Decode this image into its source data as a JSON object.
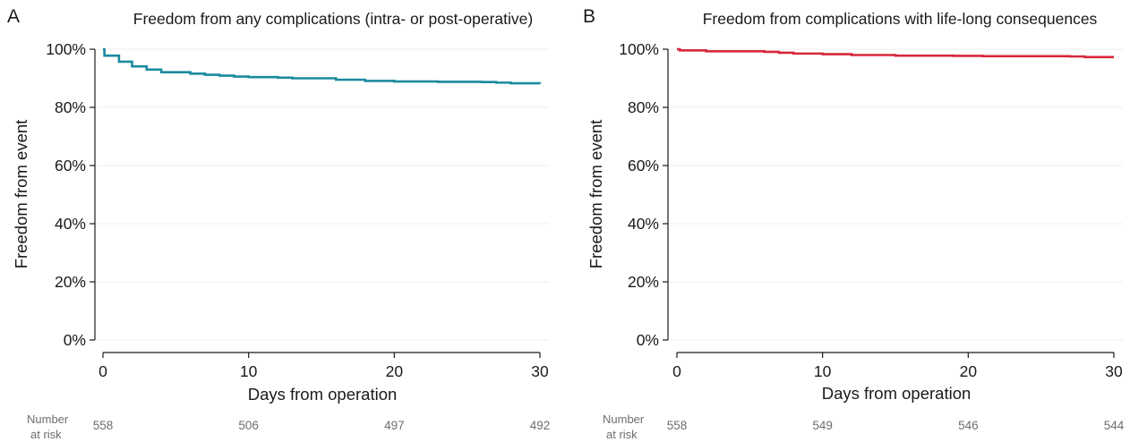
{
  "chart_data": [
    {
      "panel": "A",
      "type": "line",
      "subtype": "kaplan-meier step curve",
      "title": "Freedom from any complications (intra- or post-operative)",
      "xlabel": "Days from operation",
      "ylabel": "Freedom from event",
      "xlim": [
        0,
        30
      ],
      "ylim": [
        0,
        100
      ],
      "xticks": [
        0,
        10,
        20,
        30
      ],
      "yticks": [
        0,
        20,
        40,
        60,
        80,
        100
      ],
      "ytick_labels": [
        "0%",
        "20%",
        "40%",
        "60%",
        "80%",
        "100%"
      ],
      "grid": true,
      "color": "#1a8a9e",
      "series": [
        {
          "x": [
            0,
            0.1,
            1,
            1.1,
            2,
            3,
            4,
            6,
            7,
            8,
            9,
            10,
            12,
            13,
            16,
            18,
            20,
            23,
            26,
            27,
            28,
            30
          ],
          "y": [
            100,
            97.8,
            97.8,
            95.7,
            94.1,
            93.0,
            92.1,
            91.6,
            91.2,
            90.9,
            90.6,
            90.4,
            90.2,
            90.0,
            89.5,
            89.1,
            88.9,
            88.8,
            88.7,
            88.5,
            88.3,
            88.2
          ]
        }
      ],
      "risk_table": {
        "label_line1": "Number",
        "label_line2": "at risk",
        "x": [
          0,
          10,
          20,
          30
        ],
        "values": [
          "558",
          "506",
          "497",
          "492"
        ]
      }
    },
    {
      "panel": "B",
      "type": "line",
      "subtype": "kaplan-meier step curve",
      "title": "Freedom from complications with life-long consequences",
      "xlabel": "Days from operation",
      "ylabel": "Freedom from event",
      "xlim": [
        0,
        30
      ],
      "ylim": [
        0,
        100
      ],
      "xticks": [
        0,
        10,
        20,
        30
      ],
      "yticks": [
        0,
        20,
        40,
        60,
        80,
        100
      ],
      "ytick_labels": [
        "0%",
        "20%",
        "40%",
        "60%",
        "80%",
        "100%"
      ],
      "grid": true,
      "color": "#d62839",
      "series": [
        {
          "x": [
            0,
            0.2,
            2,
            6,
            7,
            8,
            10,
            12,
            15,
            19,
            21,
            27,
            28,
            30
          ],
          "y": [
            100,
            99.6,
            99.3,
            99.1,
            98.8,
            98.5,
            98.3,
            98.0,
            97.8,
            97.7,
            97.6,
            97.5,
            97.3,
            97.3
          ]
        }
      ],
      "risk_table": {
        "label_line1": "Number",
        "label_line2": "at risk",
        "x": [
          0,
          10,
          20,
          30
        ],
        "values": [
          "558",
          "549",
          "546",
          "544"
        ]
      }
    }
  ]
}
